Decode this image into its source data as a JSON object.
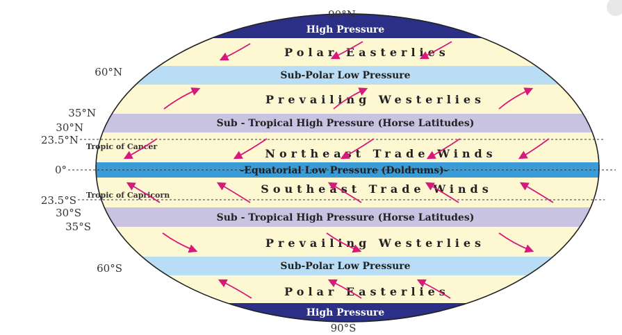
{
  "latitudes": {
    "n90": "90°N",
    "n60": "60°N",
    "n35": "35°N",
    "n30": "30°N",
    "n23": "23.5°N",
    "eq": "0°",
    "s23": "23.5°S",
    "s30": "30°S",
    "s35": "35°S",
    "s60": "60°S",
    "s90": "90°S"
  },
  "bands": {
    "north_high": "High Pressure",
    "north_subpolar": "Sub-Polar Low Pressure",
    "north_subtropical": "Sub - Tropical High Pressure  (Horse Latitudes)",
    "equatorial": "-Equatorial Low    Pressure (Doldrums)-",
    "south_subtropical": "Sub - Tropical High  Pressure (Horse Latitudes)",
    "south_subpolar": "Sub-Polar Low Pressure",
    "south_high": "High Pressure"
  },
  "winds": {
    "north_polar": "Polar Easterlies",
    "north_westerlies": "Prevailing Westerlies",
    "northeast_trade": "Northeast Trade Winds",
    "southeast_trade": "Southeast Trade Winds",
    "south_westerlies": "Prevailing Westerlies",
    "south_polar": "Polar Easterlies"
  },
  "tropics": {
    "cancer": "Tropic of Cancer",
    "capricorn": "Tropic of Capricorn"
  },
  "colors": {
    "cream": "#fdf7d2",
    "pole_band": "#2b2f86",
    "subpolar_band": "#b8ddf5",
    "subtropical_band": "#c7c3e0",
    "equator_band": "#3b9bd6",
    "arrow": "#d6197a"
  }
}
